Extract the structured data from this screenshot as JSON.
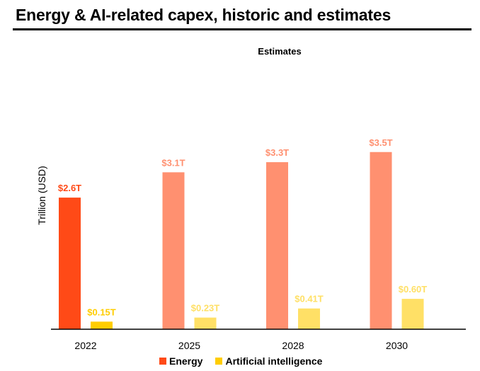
{
  "title": "Energy & AI-related capex, historic and estimates",
  "colors": {
    "energy_historic": "#ff4a17",
    "energy_estimate": "#ff9070",
    "ai_historic": "#ffcd00",
    "ai_estimate": "#ffe066",
    "axis": "#000000"
  },
  "chart_data": {
    "type": "bar",
    "title": "Energy & AI-related capex, historic and estimates",
    "ylabel": "Trillion (USD)",
    "xlabel": "",
    "annotation": "Estimates",
    "categories": [
      "2022",
      "2025",
      "2028",
      "2030"
    ],
    "estimate_categories": [
      "2025",
      "2028",
      "2030"
    ],
    "ylim": [
      0,
      4
    ],
    "series": [
      {
        "name": "Energy",
        "values": [
          2.6,
          3.1,
          3.3,
          3.5
        ],
        "labels": [
          "$2.6T",
          "$3.1T",
          "$3.3T",
          "$3.5T"
        ]
      },
      {
        "name": "Artificial intelligence",
        "values": [
          0.15,
          0.23,
          0.41,
          0.6
        ],
        "labels": [
          "$0.15T",
          "$0.23T",
          "$0.41T",
          "$0.60T"
        ]
      }
    ],
    "grid": false,
    "legend": "bottom-center"
  }
}
